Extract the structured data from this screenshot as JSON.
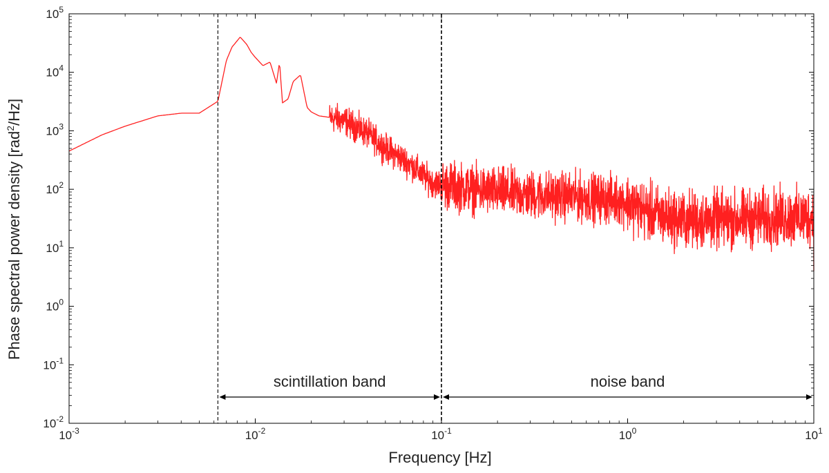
{
  "chart_data": {
    "type": "line",
    "title": "",
    "xlabel": "Frequency [Hz]",
    "ylabel_main": "Phase spectral power density [rad",
    "ylabel_sup": "2",
    "ylabel_tail": "/Hz]",
    "xscale": "log",
    "yscale": "log",
    "xlim": [
      0.001,
      10
    ],
    "ylim": [
      0.01,
      100000
    ],
    "grid": false,
    "legend": "none",
    "x_ticks": [
      {
        "value": 0.001,
        "base": "10",
        "exp": "-3"
      },
      {
        "value": 0.01,
        "base": "10",
        "exp": "-2"
      },
      {
        "value": 0.1,
        "base": "10",
        "exp": "-1"
      },
      {
        "value": 1,
        "base": "10",
        "exp": "0"
      },
      {
        "value": 10,
        "base": "10",
        "exp": "1"
      }
    ],
    "y_ticks": [
      {
        "value": 0.01,
        "base": "10",
        "exp": "-2"
      },
      {
        "value": 0.1,
        "base": "10",
        "exp": "-1"
      },
      {
        "value": 1,
        "base": "10",
        "exp": "0"
      },
      {
        "value": 10,
        "base": "10",
        "exp": "1"
      },
      {
        "value": 100,
        "base": "10",
        "exp": "2"
      },
      {
        "value": 1000,
        "base": "10",
        "exp": "3"
      },
      {
        "value": 10000,
        "base": "10",
        "exp": "4"
      },
      {
        "value": 100000,
        "base": "10",
        "exp": "5"
      }
    ],
    "vlines": [
      {
        "x": 0.0063,
        "style": "dashed"
      },
      {
        "x": 0.1,
        "style": "dashed"
      }
    ],
    "bands": [
      {
        "label": "scintillation band",
        "from": 0.0063,
        "to": 0.1
      },
      {
        "label": "noise band",
        "from": 0.1,
        "to": 10
      }
    ],
    "series": [
      {
        "color": "#ff2020",
        "anchors_x": [
          0.001,
          0.0015,
          0.002,
          0.003,
          0.004,
          0.005,
          0.0063,
          0.007,
          0.0075,
          0.0083,
          0.009,
          0.0095,
          0.01,
          0.011,
          0.012,
          0.013,
          0.0135,
          0.014,
          0.015,
          0.016,
          0.0175,
          0.019,
          0.02,
          0.022,
          0.025,
          0.03,
          0.04,
          0.05,
          0.06,
          0.07,
          0.08,
          0.09,
          0.1,
          0.15,
          0.2,
          0.3,
          0.5,
          0.7,
          0.9,
          1.0,
          1.2,
          1.5,
          2,
          3,
          5,
          7,
          10
        ],
        "anchors_y": [
          450,
          850,
          1200,
          1800,
          2000,
          2000,
          3200,
          16000,
          27000,
          40000,
          30000,
          22000,
          18000,
          13000,
          15000,
          6500,
          15000,
          3000,
          3500,
          7000,
          9000,
          2500,
          2100,
          1800,
          1700,
          1500,
          900,
          500,
          350,
          250,
          170,
          130,
          120,
          100,
          90,
          80,
          75,
          70,
          65,
          60,
          45,
          35,
          30,
          30,
          32,
          33,
          33
        ],
        "noise_from": 0.025,
        "noise_amplitude_decades": 0.18,
        "noise_boost_above": 0.1,
        "noise_boost_decades": 0.3,
        "end_value": 4
      }
    ]
  }
}
